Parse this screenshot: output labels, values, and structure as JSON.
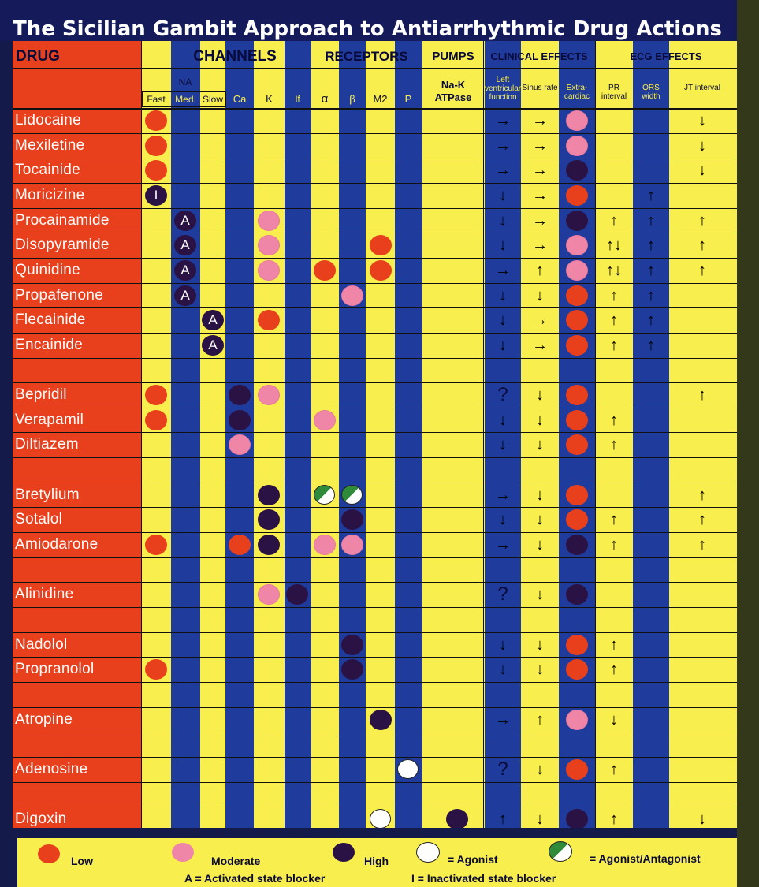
{
  "title": "The Sicilian Gambit Approach to Antiarrhythmic Drug Actions",
  "headers": {
    "drug": "DRUG",
    "channels": "CHANNELS",
    "receptors": "RECEPTORS",
    "pumps": "PUMPS",
    "clinical": "CLINICAL EFFECTS",
    "ecg": "ECG EFFECTS",
    "na": "NA",
    "fast": "Fast",
    "med": "Med.",
    "slow": "Slow",
    "ca": "Ca",
    "k": "K",
    "if": "If",
    "alpha": "α",
    "beta": "β",
    "m2": "M2",
    "p": "P",
    "nak": "Na-K ATPase",
    "lv": "Left ventricular function",
    "sinus": "Sinus rate",
    "extra": "Extra-cardiac",
    "pr": "PR interval",
    "qrs": "QRS width",
    "jt": "JT interval"
  },
  "colors": {
    "low": "#e8401c",
    "moderate": "#ef86a8",
    "high": "#2a1244",
    "agonist": "#ffffff",
    "agonist_antagonist": "#2f8a3a",
    "yellow": "#f8ee4d",
    "blue": "#1f3c9c",
    "red": "#e8401c"
  },
  "rows": [
    {
      "drug": "Lidocaine",
      "cells": {
        "fast": "low",
        "extra": "moderate"
      },
      "arrows": {
        "lv": "→",
        "sinus": "→",
        "jt": "↓"
      }
    },
    {
      "drug": "Mexiletine",
      "cells": {
        "fast": "low",
        "extra": "moderate"
      },
      "arrows": {
        "lv": "→",
        "sinus": "→",
        "jt": "↓"
      }
    },
    {
      "drug": "Tocainide",
      "cells": {
        "fast": "low",
        "extra": "high"
      },
      "arrows": {
        "lv": "→",
        "sinus": "→",
        "jt": "↓"
      }
    },
    {
      "drug": "Moricizine",
      "cells": {
        "fast": "high:I",
        "extra": "low"
      },
      "arrows": {
        "lv": "↓",
        "sinus": "→",
        "qrs": "↑"
      }
    },
    {
      "drug": "Procainamide",
      "cells": {
        "med": "high:A",
        "k": "moderate",
        "extra": "high"
      },
      "arrows": {
        "lv": "↓",
        "sinus": "→",
        "pr": "↑",
        "qrs": "↑",
        "jt": "↑"
      }
    },
    {
      "drug": "Disopyramide",
      "cells": {
        "med": "high:A",
        "k": "moderate",
        "m2": "low",
        "extra": "moderate"
      },
      "arrows": {
        "lv": "↓",
        "sinus": "→",
        "pr": "↑↓",
        "qrs": "↑",
        "jt": "↑"
      }
    },
    {
      "drug": "Quinidine",
      "cells": {
        "med": "high:A",
        "k": "moderate",
        "alpha": "low",
        "m2": "low",
        "extra": "moderate"
      },
      "arrows": {
        "lv": "→",
        "sinus": "↑",
        "pr": "↑↓",
        "qrs": "↑",
        "jt": "↑"
      }
    },
    {
      "drug": "Propafenone",
      "cells": {
        "med": "high:A",
        "beta": "moderate",
        "extra": "low"
      },
      "arrows": {
        "lv": "↓",
        "sinus": "↓",
        "pr": "↑",
        "qrs": "↑"
      }
    },
    {
      "drug": "Flecainide",
      "cells": {
        "slow": "high:A",
        "k": "low",
        "extra": "low"
      },
      "arrows": {
        "lv": "↓",
        "sinus": "→",
        "pr": "↑",
        "qrs": "↑"
      }
    },
    {
      "drug": "Encainide",
      "cells": {
        "slow": "high:A",
        "extra": "low"
      },
      "arrows": {
        "lv": "↓",
        "sinus": "→",
        "pr": "↑",
        "qrs": "↑"
      }
    },
    {
      "drug": "",
      "cells": {},
      "arrows": {}
    },
    {
      "drug": "Bepridil",
      "cells": {
        "fast": "low",
        "ca": "high",
        "k": "moderate",
        "extra": "low"
      },
      "arrows": {
        "lv": "?",
        "sinus": "↓",
        "jt": "↑"
      }
    },
    {
      "drug": "Verapamil",
      "cells": {
        "fast": "low",
        "ca": "high",
        "alpha": "moderate",
        "extra": "low"
      },
      "arrows": {
        "lv": "↓",
        "sinus": "↓",
        "pr": "↑"
      }
    },
    {
      "drug": "Diltiazem",
      "cells": {
        "ca": "moderate",
        "extra": "low"
      },
      "arrows": {
        "lv": "↓",
        "sinus": "↓",
        "pr": "↑"
      }
    },
    {
      "drug": "",
      "cells": {},
      "arrows": {}
    },
    {
      "drug": "Bretylium",
      "cells": {
        "k": "high",
        "alpha": "agonist_antagonist",
        "beta": "agonist_antagonist",
        "extra": "low"
      },
      "arrows": {
        "lv": "→",
        "sinus": "↓",
        "jt": "↑"
      }
    },
    {
      "drug": "Sotalol",
      "cells": {
        "k": "high",
        "beta": "high",
        "extra": "low"
      },
      "arrows": {
        "lv": "↓",
        "sinus": "↓",
        "pr": "↑",
        "jt": "↑"
      }
    },
    {
      "drug": "Amiodarone",
      "cells": {
        "fast": "low",
        "ca": "low",
        "k": "high",
        "alpha": "moderate",
        "beta": "moderate",
        "extra": "high"
      },
      "arrows": {
        "lv": "→",
        "sinus": "↓",
        "pr": "↑",
        "jt": "↑"
      }
    },
    {
      "drug": "",
      "cells": {},
      "arrows": {}
    },
    {
      "drug": "Alinidine",
      "cells": {
        "k": "moderate",
        "if": "high",
        "extra": "high"
      },
      "arrows": {
        "lv": "?",
        "sinus": "↓"
      }
    },
    {
      "drug": "",
      "cells": {},
      "arrows": {}
    },
    {
      "drug": "Nadolol",
      "cells": {
        "beta": "high",
        "extra": "low"
      },
      "arrows": {
        "lv": "↓",
        "sinus": "↓",
        "pr": "↑"
      }
    },
    {
      "drug": "Propranolol",
      "cells": {
        "fast": "low",
        "beta": "high",
        "extra": "low"
      },
      "arrows": {
        "lv": "↓",
        "sinus": "↓",
        "pr": "↑"
      }
    },
    {
      "drug": "",
      "cells": {},
      "arrows": {}
    },
    {
      "drug": "Atropine",
      "cells": {
        "m2": "high",
        "extra": "moderate"
      },
      "arrows": {
        "lv": "→",
        "sinus": "↑",
        "pr": "↓"
      }
    },
    {
      "drug": "",
      "cells": {},
      "arrows": {}
    },
    {
      "drug": "Adenosine",
      "cells": {
        "p": "agonist",
        "extra": "low"
      },
      "arrows": {
        "lv": "?",
        "sinus": "↓",
        "pr": "↑"
      }
    },
    {
      "drug": "",
      "cells": {},
      "arrows": {}
    },
    {
      "drug": "Digoxin",
      "cells": {
        "m2": "agonist",
        "nak": "high",
        "extra": "high"
      },
      "arrows": {
        "lv": "↑",
        "sinus": "↓",
        "pr": "↑",
        "jt": "↓"
      }
    }
  ],
  "legend": {
    "low": "Low",
    "moderate": "Moderate",
    "high": "High",
    "agonist": "= Agonist",
    "agonist_antagonist": "= Agonist/Antagonist",
    "activated": "A = Activated state blocker",
    "inactivated": "I = Inactivated state blocker"
  }
}
